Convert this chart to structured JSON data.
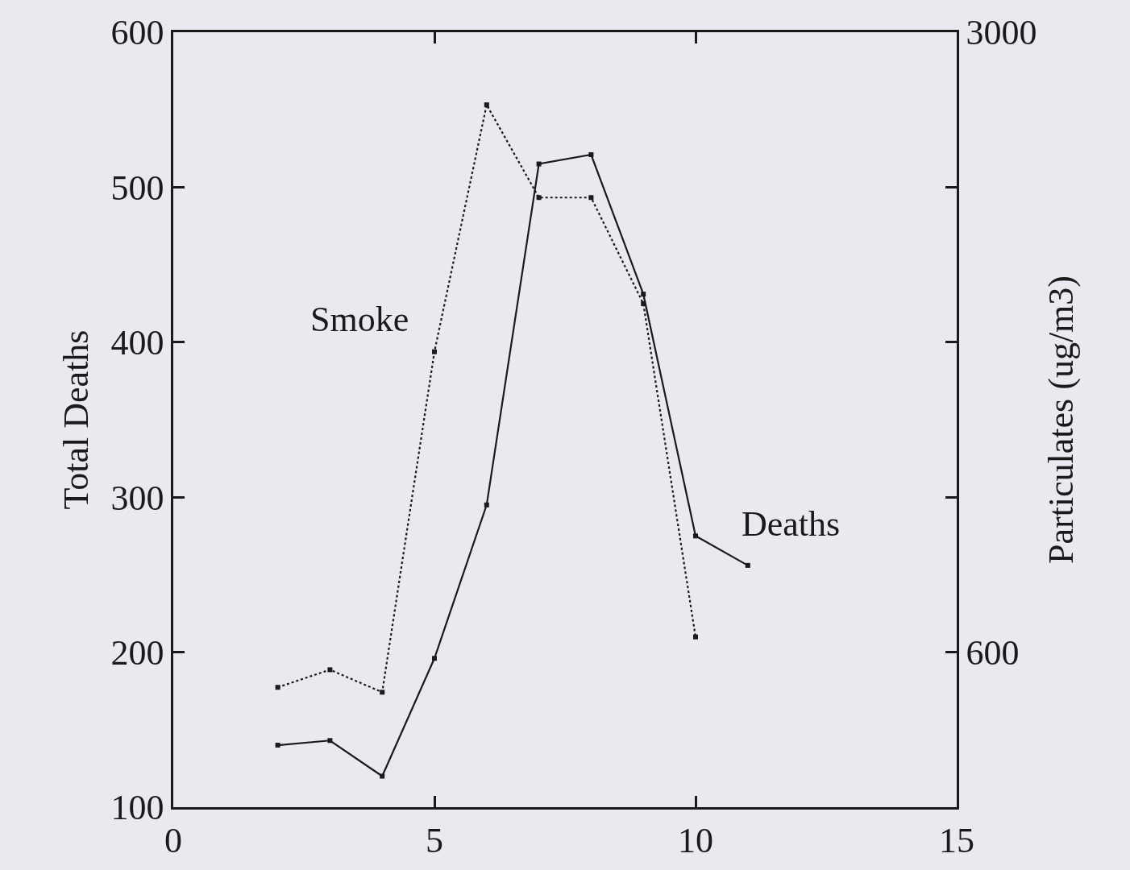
{
  "chart_data": {
    "type": "line",
    "ylabel": "Total Deaths",
    "y2label": "Particulates (ug/m3)",
    "xlim": [
      0,
      15
    ],
    "xticks": [
      0,
      5,
      10,
      15
    ],
    "ylim": [
      100,
      600
    ],
    "yticks": [
      100,
      200,
      300,
      400,
      500,
      600
    ],
    "y2lim": [
      0,
      3000
    ],
    "y2ticks": [
      {
        "value": 600,
        "label": "600"
      },
      {
        "value": 1200,
        "label": null
      },
      {
        "value": 1800,
        "label": null
      },
      {
        "value": 2400,
        "label": null
      },
      {
        "value": 3000,
        "label": "3000"
      }
    ],
    "marker": "square",
    "grid": false,
    "legend": false,
    "series": [
      {
        "name": "Deaths",
        "color": "#1a1a1a",
        "line_style": "solid",
        "x": [
          2,
          3,
          4,
          5,
          6,
          7,
          8,
          9,
          10,
          11
        ],
        "values": [
          140,
          143,
          120,
          196,
          295,
          515,
          521,
          431,
          275,
          256
        ]
      },
      {
        "name": "Smoke",
        "color": "#1a1a1a",
        "line_style": "dotted",
        "axis": "y2",
        "x": [
          2,
          3,
          4,
          5,
          6,
          7,
          8,
          9,
          10
        ],
        "values": [
          464,
          532,
          445,
          1763,
          2719,
          2360,
          2360,
          1949,
          659
        ]
      }
    ]
  }
}
